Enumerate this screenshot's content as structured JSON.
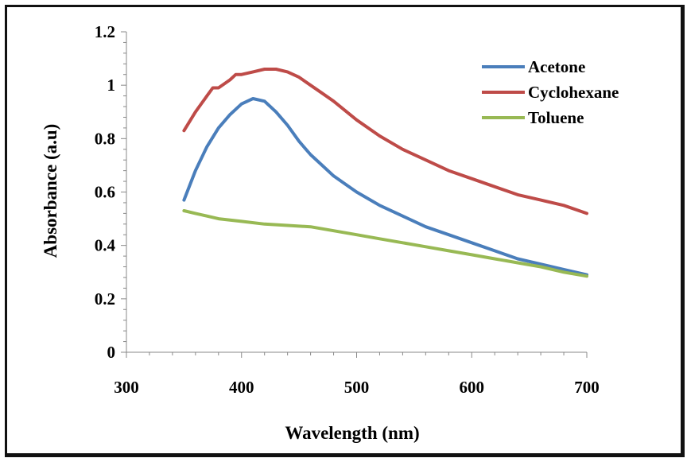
{
  "chart_data": {
    "type": "line",
    "title": "",
    "xlabel": "Wavelength (nm)",
    "ylabel": "Absorbance (a.u)",
    "xlim": [
      300,
      700
    ],
    "ylim": [
      0,
      1.2
    ],
    "x_ticks": [
      300,
      400,
      500,
      600,
      700
    ],
    "x_tick_labels": [
      "300",
      "400",
      "500",
      "600",
      "700"
    ],
    "y_ticks": [
      0,
      0.2,
      0.4,
      0.6,
      0.8,
      1.0,
      1.2
    ],
    "y_tick_labels": [
      "0",
      "0.2",
      "0.4",
      "0.6",
      "0.8",
      "1",
      "1.2"
    ],
    "grid": false,
    "legend_position": "top-right",
    "series": [
      {
        "name": "Acetone",
        "color": "#4a7ebb",
        "x": [
          350,
          360,
          370,
          380,
          390,
          400,
          410,
          420,
          430,
          440,
          450,
          460,
          470,
          480,
          490,
          500,
          520,
          540,
          560,
          580,
          600,
          620,
          640,
          660,
          680,
          700
        ],
        "y": [
          0.57,
          0.68,
          0.77,
          0.84,
          0.89,
          0.93,
          0.95,
          0.94,
          0.9,
          0.85,
          0.79,
          0.74,
          0.7,
          0.66,
          0.63,
          0.6,
          0.55,
          0.51,
          0.47,
          0.44,
          0.41,
          0.38,
          0.35,
          0.33,
          0.31,
          0.29
        ]
      },
      {
        "name": "Cyclohexane",
        "color": "#be4b48",
        "x": [
          350,
          360,
          370,
          375,
          380,
          390,
          395,
          400,
          410,
          420,
          430,
          440,
          450,
          460,
          470,
          480,
          500,
          520,
          540,
          560,
          580,
          600,
          620,
          640,
          660,
          680,
          700
        ],
        "y": [
          0.83,
          0.9,
          0.96,
          0.99,
          0.99,
          1.02,
          1.04,
          1.04,
          1.05,
          1.06,
          1.06,
          1.05,
          1.03,
          1.0,
          0.97,
          0.94,
          0.87,
          0.81,
          0.76,
          0.72,
          0.68,
          0.65,
          0.62,
          0.59,
          0.57,
          0.55,
          0.52
        ]
      },
      {
        "name": "Toluene",
        "color": "#98b954",
        "x": [
          350,
          360,
          370,
          380,
          400,
          420,
          440,
          460,
          480,
          500,
          520,
          540,
          560,
          580,
          600,
          620,
          640,
          660,
          680,
          700
        ],
        "y": [
          0.53,
          0.52,
          0.51,
          0.5,
          0.49,
          0.48,
          0.475,
          0.47,
          0.455,
          0.44,
          0.425,
          0.41,
          0.395,
          0.38,
          0.365,
          0.35,
          0.335,
          0.32,
          0.3,
          0.285
        ]
      }
    ]
  }
}
